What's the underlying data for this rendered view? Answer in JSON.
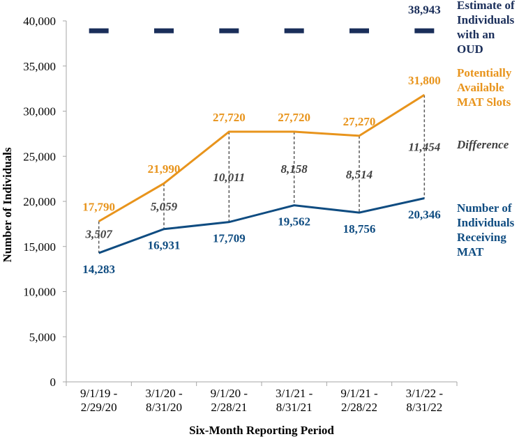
{
  "chart_data": {
    "type": "line",
    "title": "",
    "xlabel": "Six-Month Reporting Period",
    "ylabel": "Number of Individuals",
    "ylim": [
      0,
      40000
    ],
    "yticks": [
      0,
      5000,
      10000,
      15000,
      20000,
      25000,
      30000,
      35000,
      40000
    ],
    "ytick_labels": [
      "0",
      "5,000",
      "10,000",
      "15,000",
      "20,000",
      "25,000",
      "30,000",
      "35,000",
      "40,000"
    ],
    "grid": false,
    "categories": [
      [
        "9/1/19 -",
        "2/29/20"
      ],
      [
        "3/1/20 -",
        "8/31/20"
      ],
      [
        "9/1/20 -",
        "2/28/21"
      ],
      [
        "3/1/21 -",
        "8/31/21"
      ],
      [
        "9/1/21 -",
        "2/28/22"
      ],
      [
        "3/1/22 -",
        "8/31/22"
      ]
    ],
    "series": [
      {
        "name": "Estimate of Individuals with an OUD",
        "legend_lines": [
          "Estimate of",
          "Individuals",
          "with an",
          "OUD"
        ],
        "style": "dash-marker",
        "color": "#1a2e5a",
        "values": [
          38943,
          38943,
          38943,
          38943,
          38943,
          38943
        ],
        "data_labels": [
          "",
          "",
          "",
          "",
          "",
          "38,943"
        ]
      },
      {
        "name": "Potentially Available MAT Slots",
        "legend_lines": [
          "Potentially",
          "Available",
          "MAT Slots"
        ],
        "style": "line",
        "color": "#e8941c",
        "values": [
          17790,
          21990,
          27720,
          27720,
          27270,
          31800
        ],
        "data_labels": [
          "17,790",
          "21,990",
          "27,720",
          "27,720",
          "27,270",
          "31,800"
        ]
      },
      {
        "name": "Number of Individuals Receiving MAT",
        "legend_lines": [
          "Number of",
          "Individuals",
          "Receiving",
          "MAT"
        ],
        "style": "line",
        "color": "#0f4c81",
        "values": [
          14283,
          16931,
          17709,
          19562,
          18756,
          20346
        ],
        "data_labels": [
          "14,283",
          "16,931",
          "17,709",
          "19,562",
          "18,756",
          "20,346"
        ]
      }
    ],
    "difference": {
      "name": "Difference",
      "legend_lines": [
        "Difference"
      ],
      "color": "#595959",
      "values": [
        3507,
        5059,
        10011,
        8158,
        8514,
        11454
      ],
      "data_labels": [
        "3,507",
        "5,059",
        "10,011",
        "8,158",
        "8,514",
        "11,454"
      ]
    }
  }
}
